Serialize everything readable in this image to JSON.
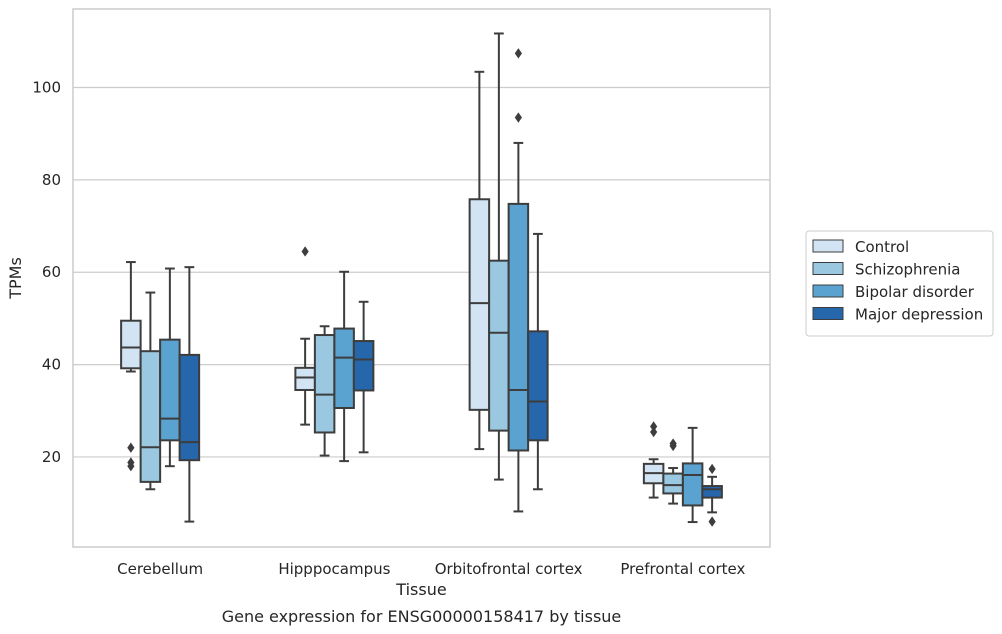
{
  "caption": "Gene expression for ENSG00000158417 by tissue",
  "chart_data": {
    "type": "box",
    "title": "",
    "xlabel": "Tissue",
    "ylabel": "TPMs",
    "ylim": [
      0.5,
      117
    ],
    "yticks": [
      20,
      40,
      60,
      80,
      100
    ],
    "grid": "horizontal",
    "legend_position": "right",
    "categories": [
      "Cerebellum",
      "Hipppocampus",
      "Orbitofrontal cortex",
      "Prefrontal cortex"
    ],
    "series": [
      {
        "name": "Control",
        "color": "#d2e3f3",
        "boxes": [
          {
            "whislo": 38.5,
            "q1": 39.2,
            "med": 43.7,
            "q3": 49.5,
            "whishi": 62.2,
            "fliers": [
              22.0,
              18.8,
              18.0
            ]
          },
          {
            "whislo": 27.0,
            "q1": 34.5,
            "med": 37.2,
            "q3": 39.3,
            "whishi": 45.6,
            "fliers": [
              64.5
            ]
          },
          {
            "whislo": 21.7,
            "q1": 30.2,
            "med": 53.3,
            "q3": 75.8,
            "whishi": 103.4,
            "fliers": []
          },
          {
            "whislo": 11.2,
            "q1": 14.3,
            "med": 16.5,
            "q3": 18.5,
            "whishi": 19.5,
            "fliers": [
              26.6,
              25.4
            ]
          }
        ]
      },
      {
        "name": "Schizophrenia",
        "color": "#9ac8e0",
        "boxes": [
          {
            "whislo": 13.0,
            "q1": 14.6,
            "med": 22.1,
            "q3": 42.9,
            "whishi": 55.6,
            "fliers": []
          },
          {
            "whislo": 20.3,
            "q1": 25.3,
            "med": 33.5,
            "q3": 46.4,
            "whishi": 48.3,
            "fliers": []
          },
          {
            "whislo": 15.1,
            "q1": 25.7,
            "med": 46.9,
            "q3": 62.5,
            "whishi": 111.7,
            "fliers": []
          },
          {
            "whislo": 9.9,
            "q1": 12.1,
            "med": 13.9,
            "q3": 16.4,
            "whishi": 17.6,
            "fliers": [
              22.9,
              22.4
            ]
          }
        ]
      },
      {
        "name": "Bipolar disorder",
        "color": "#5aa2cf",
        "boxes": [
          {
            "whislo": 18.0,
            "q1": 23.6,
            "med": 28.3,
            "q3": 45.4,
            "whishi": 60.8,
            "fliers": []
          },
          {
            "whislo": 19.1,
            "q1": 30.6,
            "med": 41.5,
            "q3": 47.8,
            "whishi": 60.1,
            "fliers": []
          },
          {
            "whislo": 8.2,
            "q1": 21.4,
            "med": 34.5,
            "q3": 74.8,
            "whishi": 88.0,
            "fliers": [
              107.4,
              93.5
            ]
          },
          {
            "whislo": 5.9,
            "q1": 9.5,
            "med": 16.1,
            "q3": 18.6,
            "whishi": 26.3,
            "fliers": []
          }
        ]
      },
      {
        "name": "Major depression",
        "color": "#2666ab",
        "boxes": [
          {
            "whislo": 6.0,
            "q1": 19.3,
            "med": 23.2,
            "q3": 42.1,
            "whishi": 61.1,
            "fliers": []
          },
          {
            "whislo": 21.0,
            "q1": 34.4,
            "med": 41.1,
            "q3": 45.1,
            "whishi": 53.6,
            "fliers": []
          },
          {
            "whislo": 13.0,
            "q1": 23.6,
            "med": 32.0,
            "q3": 47.2,
            "whishi": 68.3,
            "fliers": []
          },
          {
            "whislo": 8.0,
            "q1": 11.2,
            "med": 13.0,
            "q3": 13.7,
            "whishi": 15.7,
            "fliers": [
              17.4,
              6.0
            ]
          }
        ]
      }
    ]
  }
}
